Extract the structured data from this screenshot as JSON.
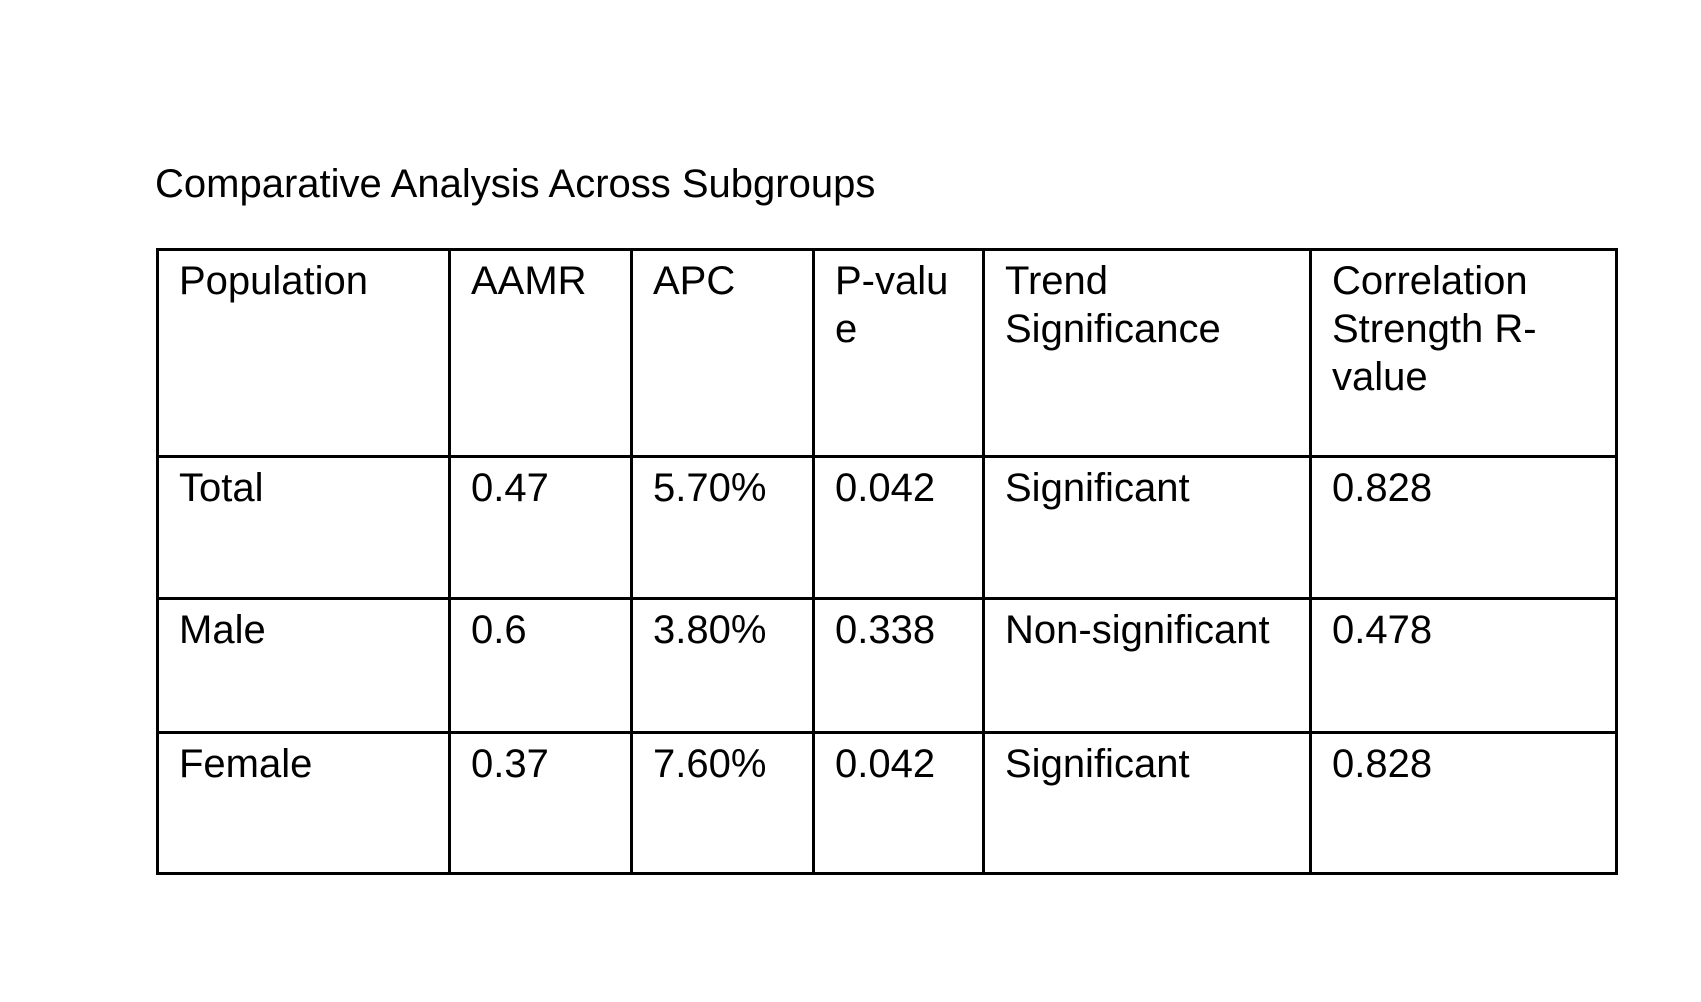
{
  "title": "Comparative Analysis Across Subgroups",
  "table": {
    "headers": [
      "Population",
      "AAMR",
      "APC",
      "P-value",
      "Trend Significance",
      "Correlation Strength R-value"
    ],
    "rows": [
      [
        "Total",
        "0.47",
        "5.70%",
        "0.042",
        "Significant",
        "0.828"
      ],
      [
        "Male",
        "0.6",
        "3.80%",
        "0.338",
        "Non-significant",
        "0.478"
      ],
      [
        "Female",
        "0.37",
        "7.60%",
        "0.042",
        "Significant",
        "0.828"
      ]
    ]
  }
}
